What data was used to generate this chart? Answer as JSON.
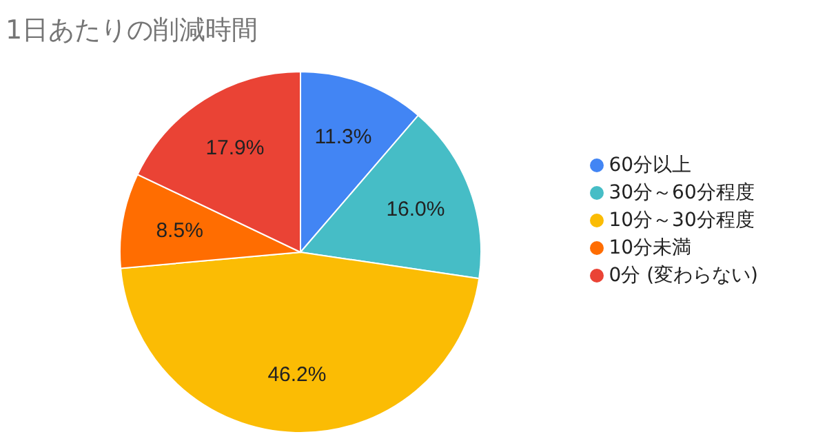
{
  "chart_data": {
    "type": "pie",
    "title": "1日あたりの削減時間",
    "categories": [
      "60分以上",
      "30分～60分程度",
      "10分～30分程度",
      "10分未満",
      "0分 (変わらない)"
    ],
    "values": [
      11.3,
      16.0,
      46.2,
      8.5,
      17.9
    ],
    "value_labels": [
      "11.3%",
      "16.0%",
      "46.2%",
      "8.5%",
      "17.9%"
    ],
    "colors": [
      "#4285f4",
      "#46bdc6",
      "#fbbc04",
      "#ff6d01",
      "#ea4335"
    ],
    "legend": "right"
  }
}
